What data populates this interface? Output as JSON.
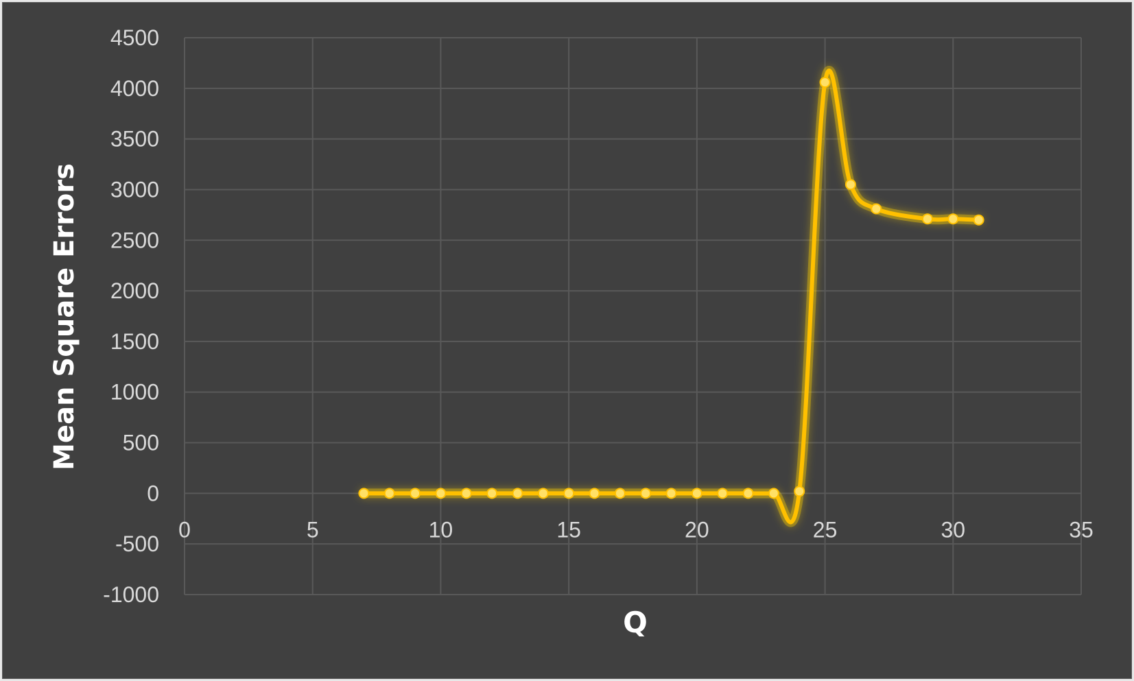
{
  "chart_data": {
    "type": "scatter",
    "title": "",
    "xlabel": "Q",
    "ylabel": "Mean Square Errors",
    "xlim": [
      0,
      35
    ],
    "ylim": [
      -1000,
      4500
    ],
    "x_ticks": [
      0,
      5,
      10,
      15,
      20,
      25,
      30,
      35
    ],
    "y_ticks": [
      -1000,
      -500,
      0,
      500,
      1000,
      1500,
      2000,
      2500,
      3000,
      3500,
      4000,
      4500
    ],
    "grid": true,
    "legend": "none",
    "line_style": "smoothed",
    "colors": {
      "series": "#ffc000",
      "marker": "#ffe066",
      "glow": "#ffd000",
      "background": "#404040",
      "grid": "#595959",
      "text": "#d9d9d9"
    },
    "series": [
      {
        "x": [
          7,
          8,
          9,
          10,
          11,
          12,
          13,
          14,
          15,
          16,
          17,
          18,
          19,
          20,
          21,
          22,
          23,
          24,
          25,
          26,
          27,
          29,
          30,
          31
        ],
        "y": [
          0,
          0,
          0,
          0,
          0,
          0,
          0,
          0,
          0,
          0,
          0,
          0,
          0,
          0,
          0,
          0,
          0,
          20,
          4060,
          3050,
          2810,
          2710,
          2710,
          2700
        ]
      }
    ]
  }
}
